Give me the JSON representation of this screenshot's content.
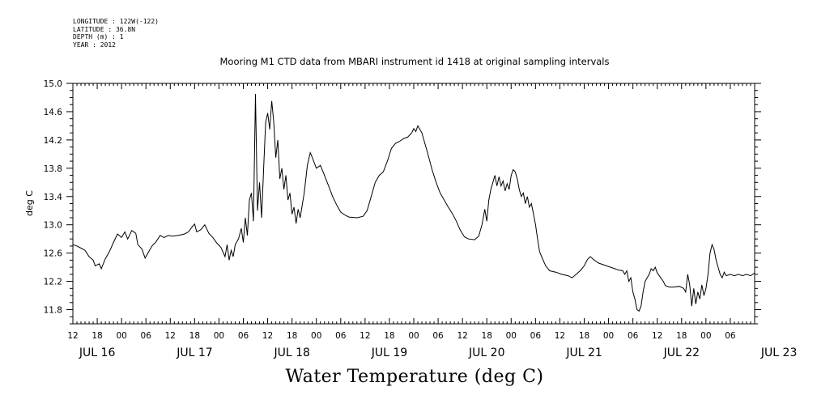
{
  "meta": [
    "LONGITUDE : 122W(-122)",
    "LATITUDE : 36.8N",
    "DEPTH (m) : 1",
    "YEAR : 2012"
  ],
  "chart_data": {
    "type": "line",
    "title": "Mooring M1 CTD data from MBARI instrument id 1418 at original sampling intervals",
    "ylabel": "deg C",
    "xlabel": "Water Temperature (deg C)",
    "ylim": [
      11.6,
      15.0
    ],
    "xlim_hours": [
      12,
      180
    ],
    "yticks": [
      11.8,
      12.2,
      12.6,
      13.0,
      13.4,
      13.8,
      14.2,
      14.6,
      15.0
    ],
    "ytick_labels": [
      "11.8",
      "12.2",
      "12.6",
      "13.0",
      "13.4",
      "13.8",
      "14.2",
      "14.6",
      "15.0"
    ],
    "xtick_labels": [
      "12",
      "18",
      "00",
      "06",
      "12",
      "18",
      "00",
      "06",
      "12",
      "18",
      "00",
      "06",
      "12",
      "18",
      "00",
      "06",
      "12",
      "18",
      "00",
      "06",
      "12",
      "18",
      "00",
      "06",
      "12",
      "18",
      "00",
      "06"
    ],
    "day_labels": [
      "JUL 16",
      "JUL 17",
      "JUL 18",
      "JUL 19",
      "JUL 20",
      "JUL 21",
      "JUL 22",
      "JUL 23"
    ],
    "grid": false,
    "series": [
      {
        "color": "#000000",
        "points": [
          [
            12.0,
            12.72
          ],
          [
            13.0,
            12.7
          ],
          [
            14.0,
            12.67
          ],
          [
            15.0,
            12.64
          ],
          [
            16.0,
            12.55
          ],
          [
            17.0,
            12.5
          ],
          [
            17.5,
            12.42
          ],
          [
            18.5,
            12.45
          ],
          [
            19.0,
            12.38
          ],
          [
            20.0,
            12.52
          ],
          [
            21.0,
            12.62
          ],
          [
            22.0,
            12.75
          ],
          [
            23.0,
            12.87
          ],
          [
            24.0,
            12.82
          ],
          [
            24.8,
            12.9
          ],
          [
            25.5,
            12.8
          ],
          [
            26.5,
            12.92
          ],
          [
            27.5,
            12.88
          ],
          [
            28.0,
            12.72
          ],
          [
            29.0,
            12.66
          ],
          [
            29.8,
            12.53
          ],
          [
            30.5,
            12.6
          ],
          [
            31.5,
            12.7
          ],
          [
            32.5,
            12.76
          ],
          [
            33.5,
            12.85
          ],
          [
            34.5,
            12.82
          ],
          [
            35.5,
            12.85
          ],
          [
            36.5,
            12.84
          ],
          [
            38.0,
            12.85
          ],
          [
            39.5,
            12.87
          ],
          [
            40.5,
            12.9
          ],
          [
            41.5,
            12.98
          ],
          [
            42.0,
            13.01
          ],
          [
            42.5,
            12.9
          ],
          [
            43.5,
            12.93
          ],
          [
            44.5,
            13.0
          ],
          [
            45.5,
            12.88
          ],
          [
            46.5,
            12.82
          ],
          [
            47.5,
            12.74
          ],
          [
            48.5,
            12.68
          ],
          [
            49.5,
            12.55
          ],
          [
            50.0,
            12.72
          ],
          [
            50.5,
            12.5
          ],
          [
            51.0,
            12.64
          ],
          [
            51.5,
            12.55
          ],
          [
            52.0,
            12.72
          ],
          [
            52.8,
            12.8
          ],
          [
            53.5,
            12.95
          ],
          [
            54.0,
            12.75
          ],
          [
            54.5,
            13.1
          ],
          [
            55.0,
            12.85
          ],
          [
            55.5,
            13.35
          ],
          [
            56.0,
            13.45
          ],
          [
            56.5,
            13.05
          ],
          [
            57.0,
            14.85
          ],
          [
            57.5,
            13.2
          ],
          [
            58.0,
            13.6
          ],
          [
            58.5,
            13.1
          ],
          [
            59.0,
            13.8
          ],
          [
            59.5,
            14.45
          ],
          [
            60.0,
            14.58
          ],
          [
            60.5,
            14.35
          ],
          [
            61.0,
            14.75
          ],
          [
            61.5,
            14.45
          ],
          [
            62.0,
            13.95
          ],
          [
            62.5,
            14.2
          ],
          [
            63.0,
            13.65
          ],
          [
            63.5,
            13.8
          ],
          [
            64.0,
            13.5
          ],
          [
            64.5,
            13.7
          ],
          [
            65.0,
            13.35
          ],
          [
            65.5,
            13.45
          ],
          [
            66.0,
            13.15
          ],
          [
            66.5,
            13.25
          ],
          [
            67.0,
            13.02
          ],
          [
            67.5,
            13.22
          ],
          [
            68.0,
            13.1
          ],
          [
            69.0,
            13.45
          ],
          [
            69.8,
            13.85
          ],
          [
            70.5,
            14.02
          ],
          [
            71.0,
            13.95
          ],
          [
            72.0,
            13.8
          ],
          [
            73.0,
            13.84
          ],
          [
            74.0,
            13.7
          ],
          [
            75.0,
            13.55
          ],
          [
            76.0,
            13.4
          ],
          [
            77.0,
            13.28
          ],
          [
            78.0,
            13.18
          ],
          [
            79.0,
            13.14
          ],
          [
            80.0,
            13.11
          ],
          [
            82.0,
            13.1
          ],
          [
            83.5,
            13.12
          ],
          [
            84.5,
            13.2
          ],
          [
            85.5,
            13.4
          ],
          [
            86.5,
            13.6
          ],
          [
            87.5,
            13.7
          ],
          [
            88.5,
            13.75
          ],
          [
            89.5,
            13.9
          ],
          [
            90.5,
            14.08
          ],
          [
            91.5,
            14.15
          ],
          [
            92.5,
            14.18
          ],
          [
            93.5,
            14.22
          ],
          [
            94.5,
            14.24
          ],
          [
            95.5,
            14.3
          ],
          [
            96.0,
            14.36
          ],
          [
            96.5,
            14.32
          ],
          [
            97.0,
            14.4
          ],
          [
            97.5,
            14.35
          ],
          [
            98.0,
            14.3
          ],
          [
            98.5,
            14.2
          ],
          [
            99.5,
            14.0
          ],
          [
            100.5,
            13.78
          ],
          [
            101.5,
            13.6
          ],
          [
            102.5,
            13.45
          ],
          [
            103.5,
            13.35
          ],
          [
            104.5,
            13.25
          ],
          [
            105.5,
            13.16
          ],
          [
            106.5,
            13.05
          ],
          [
            107.5,
            12.92
          ],
          [
            108.5,
            12.83
          ],
          [
            109.5,
            12.8
          ],
          [
            111.0,
            12.79
          ],
          [
            112.0,
            12.84
          ],
          [
            112.8,
            13.0
          ],
          [
            113.5,
            13.22
          ],
          [
            114.0,
            13.05
          ],
          [
            114.5,
            13.35
          ],
          [
            115.0,
            13.5
          ],
          [
            115.5,
            13.6
          ],
          [
            116.0,
            13.7
          ],
          [
            116.5,
            13.55
          ],
          [
            117.0,
            13.68
          ],
          [
            117.5,
            13.55
          ],
          [
            118.0,
            13.62
          ],
          [
            118.5,
            13.48
          ],
          [
            119.0,
            13.58
          ],
          [
            119.5,
            13.5
          ],
          [
            120.0,
            13.7
          ],
          [
            120.5,
            13.78
          ],
          [
            121.0,
            13.75
          ],
          [
            121.5,
            13.65
          ],
          [
            122.0,
            13.5
          ],
          [
            122.5,
            13.4
          ],
          [
            123.0,
            13.45
          ],
          [
            123.5,
            13.3
          ],
          [
            124.0,
            13.4
          ],
          [
            124.5,
            13.25
          ],
          [
            125.0,
            13.3
          ],
          [
            125.5,
            13.15
          ],
          [
            126.0,
            13.0
          ],
          [
            126.5,
            12.8
          ],
          [
            127.0,
            12.62
          ],
          [
            127.5,
            12.55
          ],
          [
            128.5,
            12.42
          ],
          [
            129.5,
            12.35
          ],
          [
            131.0,
            12.33
          ],
          [
            132.5,
            12.3
          ],
          [
            134.0,
            12.28
          ],
          [
            135.0,
            12.25
          ],
          [
            136.0,
            12.3
          ],
          [
            137.0,
            12.35
          ],
          [
            138.0,
            12.42
          ],
          [
            138.8,
            12.51
          ],
          [
            139.5,
            12.55
          ],
          [
            140.5,
            12.5
          ],
          [
            141.5,
            12.46
          ],
          [
            142.5,
            12.44
          ],
          [
            143.5,
            12.42
          ],
          [
            144.5,
            12.4
          ],
          [
            145.5,
            12.38
          ],
          [
            146.5,
            12.36
          ],
          [
            147.5,
            12.35
          ],
          [
            148.0,
            12.3
          ],
          [
            148.5,
            12.35
          ],
          [
            149.0,
            12.2
          ],
          [
            149.5,
            12.25
          ],
          [
            150.0,
            12.05
          ],
          [
            150.5,
            11.95
          ],
          [
            151.0,
            11.8
          ],
          [
            151.5,
            11.78
          ],
          [
            152.0,
            11.85
          ],
          [
            152.5,
            12.05
          ],
          [
            153.0,
            12.2
          ],
          [
            153.5,
            12.25
          ],
          [
            154.0,
            12.3
          ],
          [
            154.5,
            12.38
          ],
          [
            155.0,
            12.35
          ],
          [
            155.5,
            12.4
          ],
          [
            156.0,
            12.32
          ],
          [
            156.5,
            12.28
          ],
          [
            157.5,
            12.2
          ],
          [
            158.0,
            12.14
          ],
          [
            159.0,
            12.12
          ],
          [
            160.0,
            12.12
          ],
          [
            161.5,
            12.13
          ],
          [
            162.5,
            12.1
          ],
          [
            163.0,
            12.05
          ],
          [
            163.5,
            12.3
          ],
          [
            164.0,
            12.15
          ],
          [
            164.5,
            11.85
          ],
          [
            165.0,
            12.1
          ],
          [
            165.5,
            11.88
          ],
          [
            166.0,
            12.05
          ],
          [
            166.5,
            11.95
          ],
          [
            167.0,
            12.15
          ],
          [
            167.5,
            12.0
          ],
          [
            168.0,
            12.1
          ],
          [
            168.5,
            12.3
          ],
          [
            169.0,
            12.6
          ],
          [
            169.5,
            12.72
          ],
          [
            170.0,
            12.65
          ],
          [
            170.5,
            12.5
          ],
          [
            171.0,
            12.4
          ],
          [
            171.5,
            12.3
          ],
          [
            172.0,
            12.25
          ],
          [
            172.5,
            12.33
          ],
          [
            173.0,
            12.28
          ],
          [
            174.0,
            12.3
          ],
          [
            175.0,
            12.28
          ],
          [
            176.0,
            12.3
          ],
          [
            177.0,
            12.28
          ],
          [
            178.0,
            12.3
          ],
          [
            179.0,
            12.28
          ],
          [
            180.0,
            12.32
          ]
        ]
      }
    ]
  }
}
